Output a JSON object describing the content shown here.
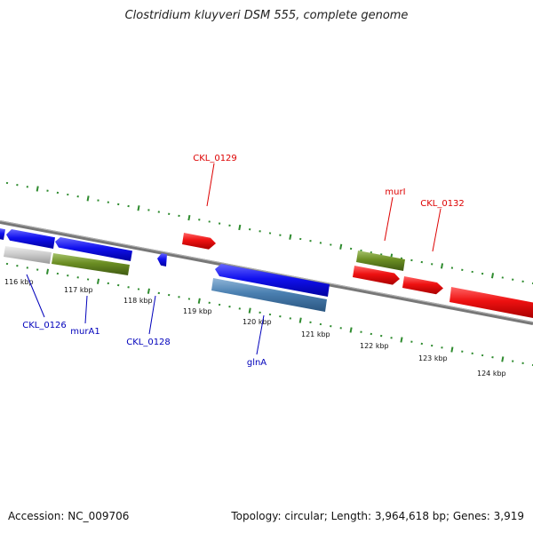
{
  "title": "Clostridium kluyveri DSM 555, complete genome",
  "footer": {
    "accession": "Accession: NC_009706",
    "summary": "Topology: circular; Length: 3,964,618 bp; Genes: 3,919"
  },
  "colors": {
    "backbone": "#888888",
    "tick": "#2e8b2e",
    "forward_gene": "#ee1111",
    "reverse_gene": "#1111ee",
    "label_forward": "#dd0000",
    "label_reverse": "#0000bb",
    "gray_gene": "#c8c8c8",
    "green_gene": "#6b8e23",
    "steel_gene": "#4a7fb0"
  },
  "scale_labels": [
    "116 kbp",
    "117 kbp",
    "118 kbp",
    "119 kbp",
    "120 kbp",
    "121 kbp",
    "122 kbp",
    "123 kbp",
    "124 kbp"
  ],
  "gene_labels": {
    "forward": [
      "CKL_0129",
      "murI",
      "CKL_0132"
    ],
    "reverse": [
      "CKL_0126",
      "murA1",
      "CKL_0128",
      "glnA"
    ]
  }
}
